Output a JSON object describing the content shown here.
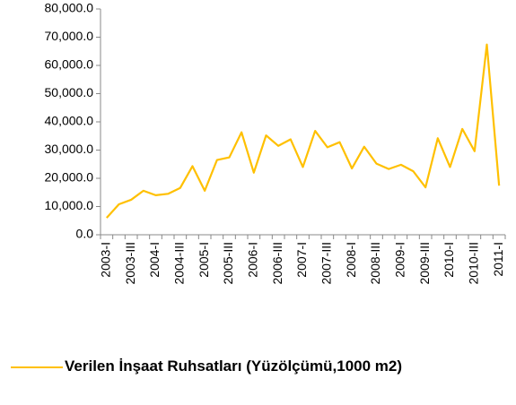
{
  "chart_data": {
    "type": "line",
    "categories": [
      "2003-I",
      null,
      "2003-III",
      null,
      "2004-I",
      null,
      "2004-III",
      null,
      "2005-I",
      null,
      "2005-III",
      null,
      "2006-I",
      null,
      "2006-III",
      null,
      "2007-I",
      null,
      "2007-III",
      null,
      "2008-I",
      null,
      "2008-III",
      null,
      "2009-I",
      null,
      "2009-III",
      null,
      "2010-I",
      null,
      "2010-III",
      null,
      "2011-I"
    ],
    "series": [
      {
        "name": "Verilen İnşaat Ruhsatları (Yüzölçümü,1000 m2)",
        "color": "#FFC000",
        "values": [
          6000,
          10800,
          12400,
          15600,
          14000,
          14500,
          16600,
          24300,
          15600,
          26500,
          27400,
          36300,
          22000,
          35200,
          31500,
          33800,
          24000,
          36800,
          31000,
          32800,
          23500,
          31200,
          25200,
          23300,
          24800,
          22500,
          16800,
          34200,
          24000,
          37500,
          29600,
          67400,
          17400
        ]
      }
    ],
    "ylim": [
      0,
      80000
    ],
    "yticks": [
      {
        "value": 0,
        "label": "0.0"
      },
      {
        "value": 10000,
        "label": "10,000.0"
      },
      {
        "value": 20000,
        "label": "20,000.0"
      },
      {
        "value": 30000,
        "label": "30,000.0"
      },
      {
        "value": 40000,
        "label": "40,000.0"
      },
      {
        "value": 50000,
        "label": "50,000.0"
      },
      {
        "value": 60000,
        "label": "60,000.0"
      },
      {
        "value": 70000,
        "label": "70,000.0"
      },
      {
        "value": 80000,
        "label": "80,000.0"
      }
    ],
    "grid": false,
    "legend": "bottom"
  }
}
